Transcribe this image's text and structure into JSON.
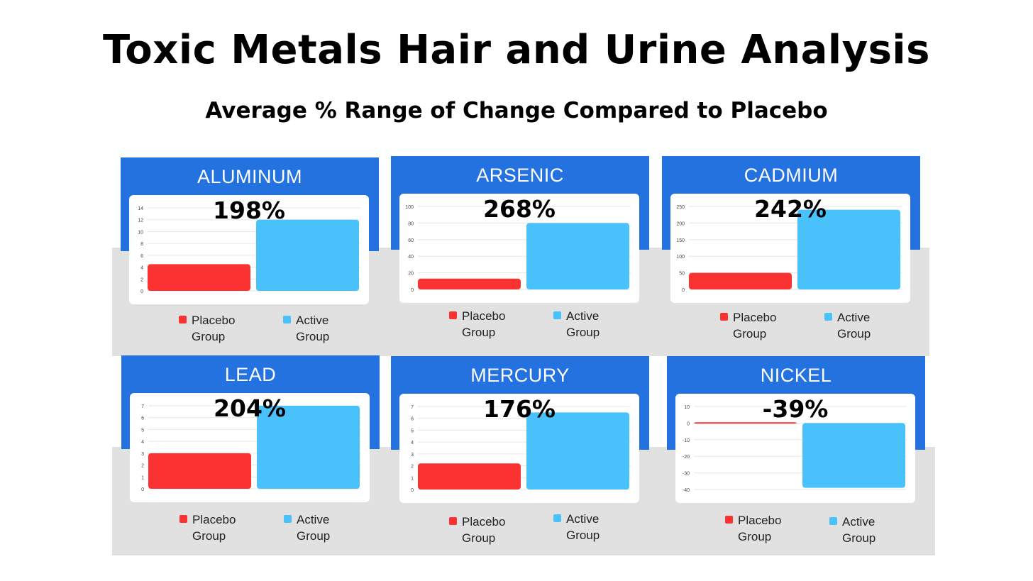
{
  "title": "Toxic Metals Hair and Urine Analysis",
  "subtitle": "Average % Range of Change Compared to Placebo",
  "colors": {
    "placebo": "#fb3232",
    "active": "#49c1fb",
    "header": "#2472df",
    "band": "#e1e1e1"
  },
  "legend": {
    "placebo_word1": "Placebo",
    "placebo_word2": "Group",
    "active_word1": "Active",
    "active_word2": "Group"
  },
  "chart_data": [
    {
      "type": "bar",
      "title": "ALUMINUM",
      "annotation": "198%",
      "categories": [
        "Placebo Group",
        "Active Group"
      ],
      "values": [
        4.5,
        12
      ],
      "ylim": [
        0,
        14
      ],
      "yticks": [
        "0",
        "2",
        "4",
        "6",
        "8",
        "10",
        "12",
        "14"
      ],
      "ytick_values": [
        0,
        2,
        4,
        6,
        8,
        10,
        12,
        14
      ]
    },
    {
      "type": "bar",
      "title": "ARSENIC",
      "annotation": "268%",
      "categories": [
        "Placebo Group",
        "Active Group"
      ],
      "values": [
        13,
        80
      ],
      "ylim": [
        0,
        100
      ],
      "yticks": [
        "0",
        "20",
        "40",
        "60",
        "80",
        "100"
      ],
      "ytick_values": [
        0,
        20,
        40,
        60,
        80,
        100
      ]
    },
    {
      "type": "bar",
      "title": "CADMIUM",
      "annotation": "242%",
      "categories": [
        "Placebo Group",
        "Active Group"
      ],
      "values": [
        50,
        240
      ],
      "ylim": [
        0,
        250
      ],
      "yticks": [
        "0",
        "50",
        "100",
        "150",
        "200",
        "250"
      ],
      "ytick_values": [
        0,
        50,
        100,
        150,
        200,
        250
      ]
    },
    {
      "type": "bar",
      "title": "LEAD",
      "annotation": "204%",
      "categories": [
        "Placebo Group",
        "Active Group"
      ],
      "values": [
        3,
        7
      ],
      "ylim": [
        0,
        7
      ],
      "yticks": [
        "0",
        "1",
        "2",
        "3",
        "4",
        "5",
        "6",
        "7"
      ],
      "ytick_values": [
        0,
        1,
        2,
        3,
        4,
        5,
        6,
        7
      ]
    },
    {
      "type": "bar",
      "title": "MERCURY",
      "annotation": "176%",
      "categories": [
        "Placebo Group",
        "Active Group"
      ],
      "values": [
        2.2,
        6.5
      ],
      "ylim": [
        0,
        7
      ],
      "yticks": [
        "0",
        "1",
        "2",
        "3",
        "4",
        "5",
        "6",
        "7"
      ],
      "ytick_values": [
        0,
        1,
        2,
        3,
        4,
        5,
        6,
        7
      ]
    },
    {
      "type": "bar",
      "title": "NICKEL",
      "annotation": "-39%",
      "categories": [
        "Placebo Group",
        "Active Group"
      ],
      "values": [
        0.5,
        -39
      ],
      "ylim": [
        -40,
        10
      ],
      "yticks": [
        "-40",
        "-30",
        "-20",
        "-10",
        "0",
        "10"
      ],
      "ytick_values": [
        -40,
        -30,
        -20,
        -10,
        0,
        10
      ]
    }
  ]
}
